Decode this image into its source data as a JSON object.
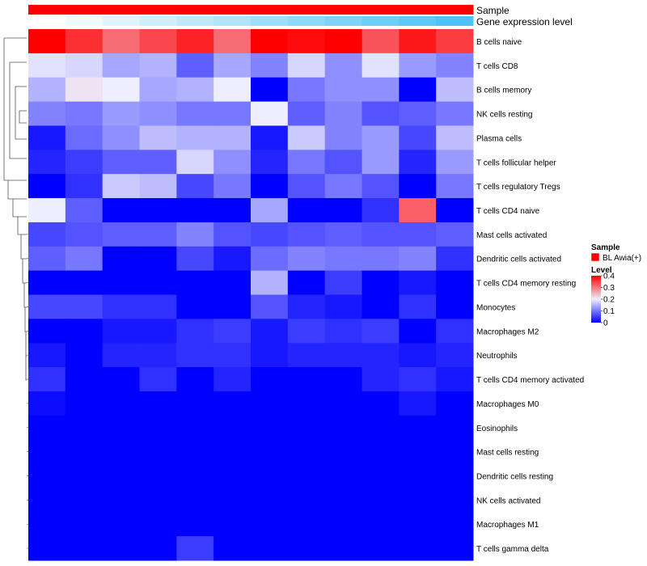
{
  "chart_data": {
    "type": "heatmap",
    "title": "",
    "annotation_tracks": [
      {
        "label": "Sample"
      },
      {
        "label": "Gene expression level"
      }
    ],
    "rows": [
      "B cells naive",
      "T cells CD8",
      "B cells memory",
      "NK cells resting",
      "Plasma cells",
      "T cells follicular helper",
      "T cells regulatory  Tregs",
      "T cells CD4 naive",
      "Mast cells activated",
      "Dendritic cells activated",
      "T cells CD4 memory resting",
      "Monocytes",
      "Macrophages M2",
      "Neutrophils",
      "T cells CD4 memory activated",
      "Macrophages M0",
      "Eosinophils",
      "Mast cells resting",
      "Dendritic cells resting",
      "NK cells activated",
      "Macrophages M1",
      "T cells gamma delta"
    ],
    "n_columns": 12,
    "gene_expression_level": [
      0.0,
      0.09,
      0.18,
      0.27,
      0.36,
      0.45,
      0.55,
      0.64,
      0.73,
      0.82,
      0.91,
      1.0
    ],
    "values": [
      [
        0.4,
        0.36,
        0.31,
        0.34,
        0.37,
        0.31,
        0.4,
        0.39,
        0.4,
        0.33,
        0.38,
        0.35
      ],
      [
        0.19,
        0.18,
        0.14,
        0.15,
        0.08,
        0.14,
        0.11,
        0.18,
        0.12,
        0.19,
        0.13,
        0.11
      ],
      [
        0.15,
        0.21,
        0.2,
        0.14,
        0.15,
        0.2,
        0.0,
        0.1,
        0.12,
        0.12,
        0.0,
        0.16
      ],
      [
        0.11,
        0.1,
        0.13,
        0.12,
        0.1,
        0.1,
        0.2,
        0.08,
        0.11,
        0.07,
        0.08,
        0.1
      ],
      [
        0.02,
        0.09,
        0.12,
        0.16,
        0.15,
        0.15,
        0.02,
        0.17,
        0.11,
        0.13,
        0.06,
        0.16
      ],
      [
        0.03,
        0.05,
        0.08,
        0.08,
        0.18,
        0.12,
        0.03,
        0.1,
        0.07,
        0.13,
        0.03,
        0.13
      ],
      [
        0.0,
        0.04,
        0.17,
        0.16,
        0.06,
        0.1,
        0.0,
        0.07,
        0.1,
        0.07,
        0.0,
        0.1
      ],
      [
        0.2,
        0.08,
        0.0,
        0.0,
        0.0,
        0.0,
        0.14,
        0.0,
        0.0,
        0.04,
        0.32,
        0.0
      ],
      [
        0.06,
        0.07,
        0.08,
        0.08,
        0.11,
        0.07,
        0.06,
        0.07,
        0.08,
        0.07,
        0.07,
        0.08
      ],
      [
        0.08,
        0.1,
        0.0,
        0.0,
        0.06,
        0.02,
        0.09,
        0.11,
        0.1,
        0.1,
        0.11,
        0.04
      ],
      [
        0.0,
        0.0,
        0.0,
        0.0,
        0.0,
        0.0,
        0.15,
        0.0,
        0.05,
        0.0,
        0.02,
        0.0
      ],
      [
        0.06,
        0.06,
        0.04,
        0.04,
        0.0,
        0.0,
        0.07,
        0.03,
        0.02,
        0.0,
        0.04,
        0.0
      ],
      [
        0.0,
        0.0,
        0.02,
        0.02,
        0.04,
        0.05,
        0.02,
        0.05,
        0.04,
        0.05,
        0.0,
        0.04
      ],
      [
        0.02,
        0.0,
        0.03,
        0.03,
        0.04,
        0.04,
        0.02,
        0.03,
        0.03,
        0.03,
        0.02,
        0.03
      ],
      [
        0.04,
        0.0,
        0.0,
        0.04,
        0.0,
        0.03,
        0.0,
        0.0,
        0.0,
        0.03,
        0.04,
        0.02
      ],
      [
        0.01,
        0.0,
        0.0,
        0.0,
        0.0,
        0.0,
        0.0,
        0.0,
        0.0,
        0.0,
        0.02,
        0.0
      ],
      [
        0.0,
        0.0,
        0.0,
        0.0,
        0.0,
        0.0,
        0.0,
        0.0,
        0.0,
        0.0,
        0.0,
        0.0
      ],
      [
        0.0,
        0.0,
        0.0,
        0.0,
        0.0,
        0.0,
        0.0,
        0.0,
        0.0,
        0.0,
        0.0,
        0.0
      ],
      [
        0.0,
        0.0,
        0.0,
        0.0,
        0.0,
        0.0,
        0.0,
        0.0,
        0.0,
        0.0,
        0.0,
        0.0
      ],
      [
        0.0,
        0.0,
        0.0,
        0.0,
        0.0,
        0.0,
        0.0,
        0.0,
        0.0,
        0.0,
        0.0,
        0.0
      ],
      [
        0.0,
        0.0,
        0.0,
        0.0,
        0.0,
        0.0,
        0.0,
        0.0,
        0.0,
        0.0,
        0.0,
        0.0
      ],
      [
        0.0,
        0.0,
        0.0,
        0.0,
        0.05,
        0.0,
        0.0,
        0.0,
        0.0,
        0.0,
        0.0,
        0.0
      ]
    ],
    "legend": {
      "sample_title": "Sample",
      "sample_entry": "BL Awia(+)",
      "sample_color": "#ff0000",
      "level_title": "Level",
      "level_ticks": [
        "0.4",
        "0.3",
        "0.2",
        "0.1",
        "0"
      ],
      "level_tick_values": [
        0.4,
        0.3,
        0.2,
        0.1,
        0.0
      ],
      "level_range": [
        0,
        0.4
      ],
      "placement": "right"
    },
    "colors": {
      "low": "#0000ff",
      "mid": "#eeeeff",
      "high": "#ff0000",
      "gene_low": "#ffffff",
      "gene_high": "#4fc3f7"
    }
  }
}
